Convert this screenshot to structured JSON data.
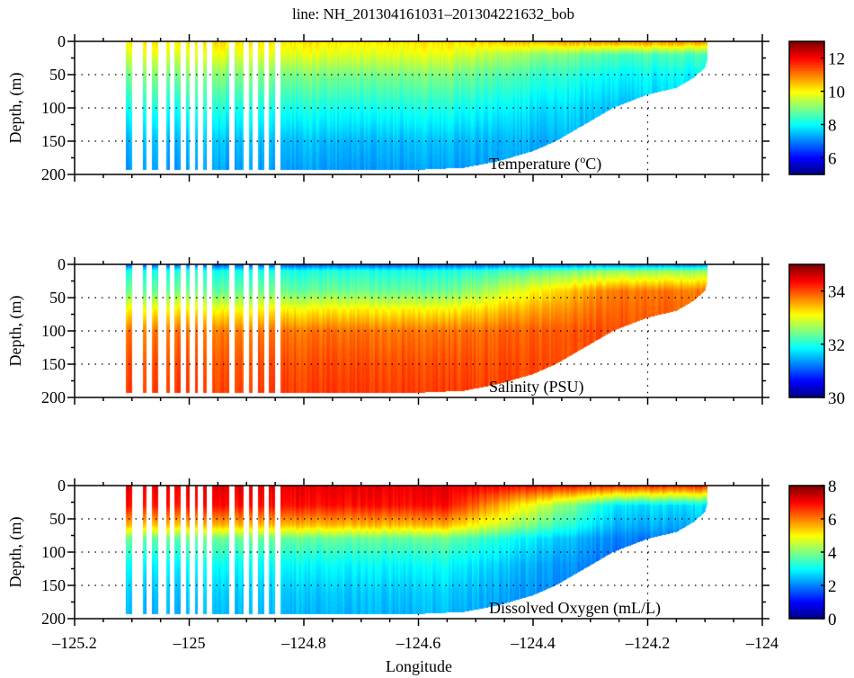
{
  "chart_data": {
    "type": "heatmap",
    "title": "line: NH_201304161031–201304221632_bob",
    "xlabel": "Longitude",
    "xlim": [
      -125.2,
      -124.0
    ],
    "xticks": [
      -125.2,
      -125.0,
      -124.8,
      -124.6,
      -124.4,
      -124.2,
      -124.0
    ],
    "xtick_labels": [
      "–125.2",
      "–125",
      "–124.8",
      "–124.6",
      "–124.4",
      "–124.2",
      "–124"
    ],
    "grid": "dotted",
    "colormap": "jet",
    "bathymetry_profile": {
      "description": "approximate maximum sampled depth (m) along the transect",
      "longitude": [
        -125.11,
        -124.6,
        -124.52,
        -124.46,
        -124.4,
        -124.36,
        -124.3,
        -124.26,
        -124.2,
        -124.15,
        -124.12,
        -124.1,
        -124.095
      ],
      "max_depth": [
        193,
        193,
        190,
        180,
        165,
        150,
        120,
        100,
        80,
        70,
        55,
        40,
        25
      ]
    },
    "panels": [
      {
        "variable": "Temperature",
        "annotation": "Temperature (°C)",
        "annotation_main": "Temperature (",
        "annotation_sup": "o",
        "annotation_end": "C)",
        "ylabel": "Depth, (m)",
        "ylim": [
          0,
          200
        ],
        "yticks": [
          0,
          50,
          100,
          150,
          200
        ],
        "colorbar": {
          "min": 5,
          "max": 13,
          "ticks": [
            6,
            8,
            10,
            12
          ]
        },
        "profile": {
          "depth": [
            0,
            20,
            50,
            100,
            150,
            200
          ],
          "value_offshore": [
            10.2,
            9.8,
            9.0,
            8.2,
            7.5,
            7.2
          ],
          "value_nearshore": [
            11.0,
            8.6,
            8.0,
            7.5,
            7.3,
            7.2
          ]
        }
      },
      {
        "variable": "Salinity",
        "annotation": "Salinity (PSU)",
        "ylabel": "Depth, (m)",
        "ylim": [
          0,
          200
        ],
        "yticks": [
          0,
          50,
          100,
          150,
          200
        ],
        "colorbar": {
          "min": 30,
          "max": 35,
          "ticks": [
            30,
            32,
            34
          ]
        },
        "profile": {
          "depth": [
            0,
            10,
            40,
            70,
            100,
            150,
            200
          ],
          "value_offshore": [
            31.0,
            32.0,
            32.4,
            33.2,
            33.8,
            34.0,
            34.1
          ],
          "value_nearshore": [
            31.2,
            32.6,
            33.8,
            33.9,
            34.0,
            34.0,
            34.0
          ]
        }
      },
      {
        "variable": "Dissolved Oxygen",
        "annotation": "Dissolved Oxygen (mL/L)",
        "ylabel": "Depth, (m)",
        "ylim": [
          0,
          200
        ],
        "yticks": [
          0,
          50,
          100,
          150,
          200
        ],
        "colorbar": {
          "min": 0,
          "max": 8,
          "ticks": [
            0,
            2,
            4,
            6,
            8
          ]
        },
        "profile": {
          "depth": [
            0,
            30,
            60,
            80,
            120,
            160,
            200
          ],
          "value_offshore": [
            7.2,
            6.9,
            5.5,
            3.8,
            3.0,
            2.6,
            2.4
          ],
          "value_nearshore": [
            6.8,
            2.8,
            2.4,
            2.0,
            1.8,
            1.8,
            1.8
          ]
        }
      }
    ],
    "data_gaps_longitude": [
      -125.095,
      -125.085,
      -125.07,
      -125.05,
      -125.045,
      -125.03,
      -125.01,
      -124.995,
      -124.98,
      -124.965,
      -124.925,
      -124.9,
      -124.885,
      -124.865,
      -124.845
    ]
  }
}
